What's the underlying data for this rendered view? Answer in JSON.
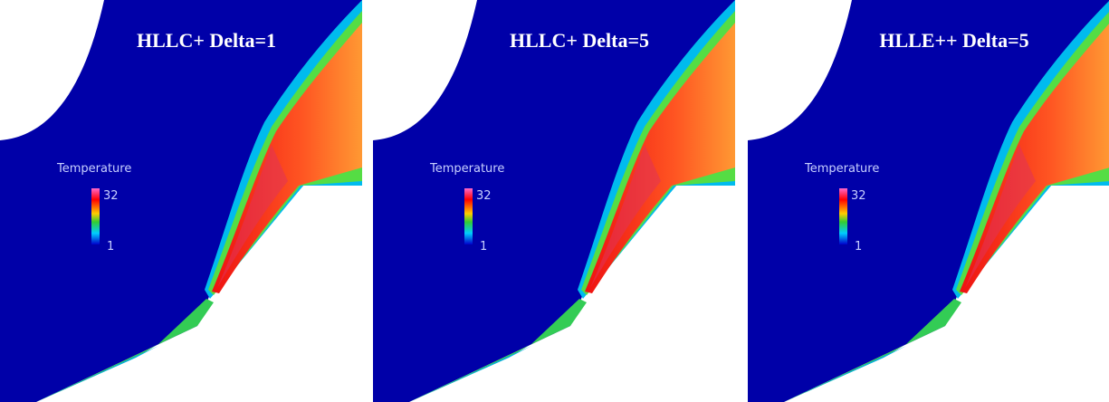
{
  "panels": [
    {
      "title": "HLLC+ Delta=1",
      "legend": {
        "title": "Temperature",
        "max": "32",
        "min": "1"
      }
    },
    {
      "title": "HLLC+ Delta=5",
      "legend": {
        "title": "Temperature",
        "max": "32",
        "min": "1"
      }
    },
    {
      "title": "HLLE++ Delta=5",
      "legend": {
        "title": "Temperature",
        "max": "32",
        "min": "1"
      }
    }
  ]
}
